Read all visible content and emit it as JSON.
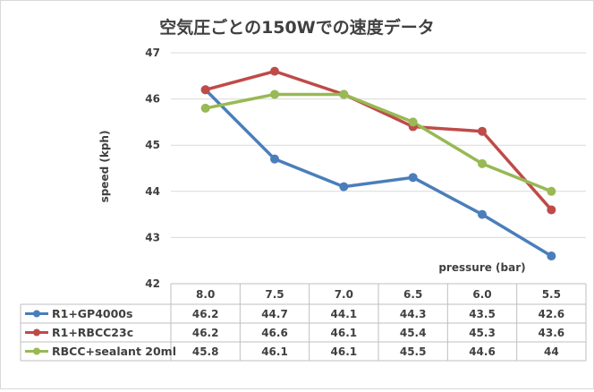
{
  "chart_data": {
    "type": "line",
    "title": "空気圧ごとの150Wでの速度データ",
    "ylabel": "speed (kph)",
    "xlabel": "pressure (bar)",
    "ylim": [
      42,
      47
    ],
    "yticks": [
      "42",
      "43",
      "44",
      "45",
      "46",
      "47"
    ],
    "grid": true,
    "legend": "data-table",
    "categories": [
      "8.0",
      "7.5",
      "7.0",
      "6.5",
      "6.0",
      "5.5"
    ],
    "series": [
      {
        "name": "R1+GP4000s",
        "color": "#4a7ebb",
        "values": [
          46.2,
          44.7,
          44.1,
          44.3,
          43.5,
          42.6
        ],
        "labels": [
          "46.2",
          "44.7",
          "44.1",
          "44.3",
          "43.5",
          "42.6"
        ]
      },
      {
        "name": "R1+RBCC23c",
        "color": "#be4b48",
        "values": [
          46.2,
          46.6,
          46.1,
          45.4,
          45.3,
          43.6
        ],
        "labels": [
          "46.2",
          "46.6",
          "46.1",
          "45.4",
          "45.3",
          "43.6"
        ]
      },
      {
        "name": "RBCC+sealant 20ml",
        "color": "#98b954",
        "values": [
          45.8,
          46.1,
          46.1,
          45.5,
          44.6,
          44.0
        ],
        "labels": [
          "45.8",
          "46.1",
          "46.1",
          "45.5",
          "44.6",
          "44"
        ]
      }
    ]
  }
}
